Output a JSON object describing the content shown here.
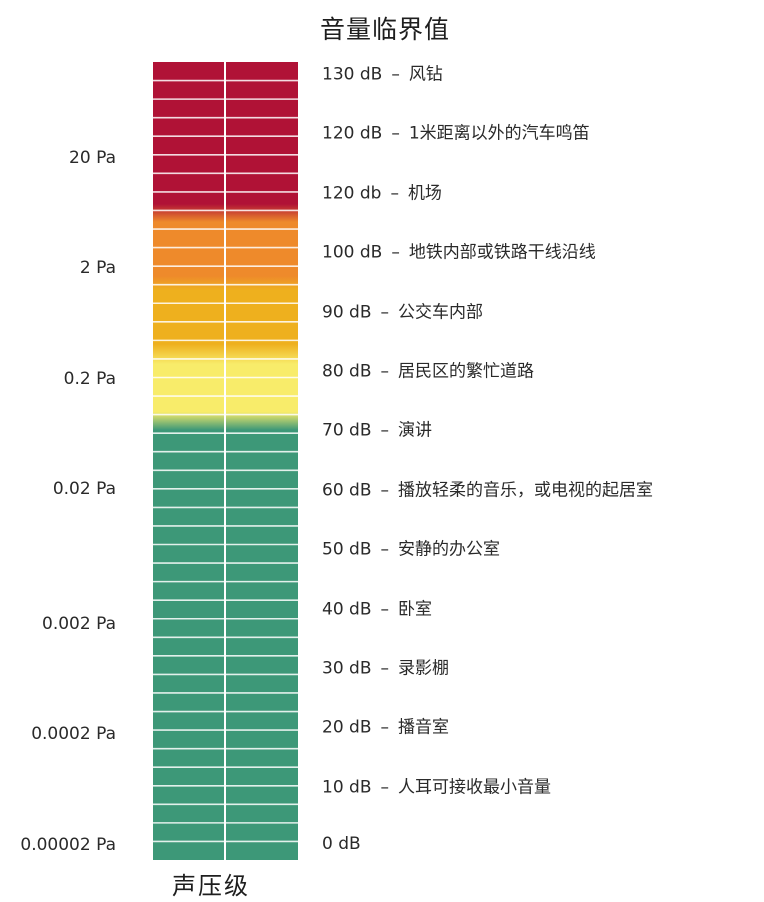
{
  "title": "音量临界值",
  "axis_label": "声压级",
  "separator": "–",
  "colors": {
    "red": "#b01236",
    "orange": "#ee8a2b",
    "amber": "#eeb01e",
    "yellow": "#f8ec6a",
    "green": "#3d9878",
    "divider": "#ffffff"
  },
  "pressure_labels": [
    {
      "text": "20 Pa"
    },
    {
      "text": "2 Pa"
    },
    {
      "text": "0.2 Pa"
    },
    {
      "text": "0.02 Pa"
    },
    {
      "text": "0.002 Pa"
    },
    {
      "text": "0.0002 Pa"
    },
    {
      "text": "0.00002 Pa"
    }
  ],
  "levels": [
    {
      "db": "130 dB",
      "desc": "风钻"
    },
    {
      "db": "120 dB",
      "desc": "1米距离以外的汽车鸣笛"
    },
    {
      "db": "120 db",
      "desc": "机场"
    },
    {
      "db": "100 dB",
      "desc": "地铁内部或铁路干线沿线"
    },
    {
      "db": "90 dB",
      "desc": "公交车内部"
    },
    {
      "db": "80 dB",
      "desc": "居民区的繁忙道路"
    },
    {
      "db": "70 dB",
      "desc": "演讲"
    },
    {
      "db": "60 dB",
      "desc": "播放轻柔的音乐，或电视的起居室"
    },
    {
      "db": "50 dB",
      "desc": "安静的办公室"
    },
    {
      "db": "40 dB",
      "desc": "卧室"
    },
    {
      "db": "30 dB",
      "desc": "录影棚"
    },
    {
      "db": "20 dB",
      "desc": "播音室"
    },
    {
      "db": "10 dB",
      "desc": "人耳可接收最小音量"
    },
    {
      "db": "0 dB",
      "desc": ""
    }
  ]
}
